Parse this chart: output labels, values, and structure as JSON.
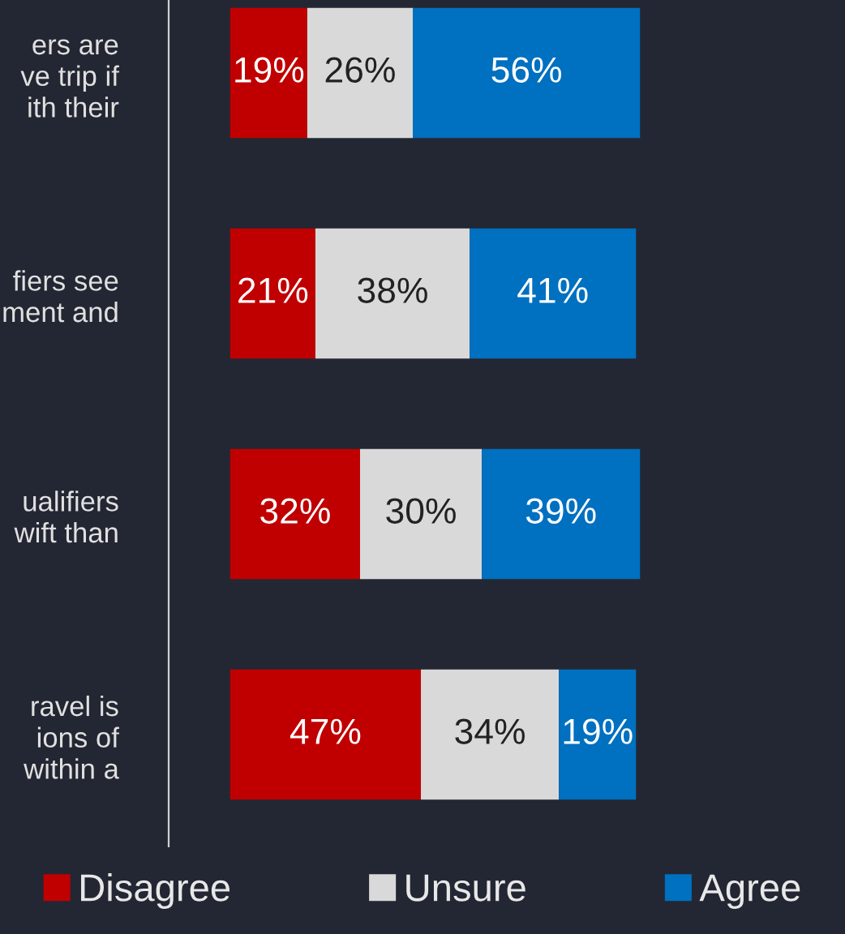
{
  "chart_data": {
    "type": "bar",
    "orientation": "horizontal",
    "stacked": true,
    "legend": "bottom",
    "tick_labels": "y",
    "grid": false,
    "categories": [
      "ers are\nve trip if\nith their",
      "fiers see\nment and",
      "ualifiers\nwift than",
      "ravel is\nions of\nwithin a"
    ],
    "series": [
      {
        "name": "Disagree",
        "color": "#c00000",
        "values": [
          19,
          21,
          32,
          47
        ],
        "value_labels": [
          "19%",
          "21%",
          "32%",
          "47%"
        ]
      },
      {
        "name": "Unsure",
        "color": "#d9d9d9",
        "values": [
          26,
          38,
          30,
          34
        ],
        "value_labels": [
          "26%",
          "38%",
          "30%",
          "34%"
        ]
      },
      {
        "name": "Agree",
        "color": "#0070c0",
        "values": [
          56,
          41,
          39,
          19
        ],
        "value_labels": [
          "56%",
          "41%",
          "39%",
          "19%"
        ]
      }
    ]
  }
}
